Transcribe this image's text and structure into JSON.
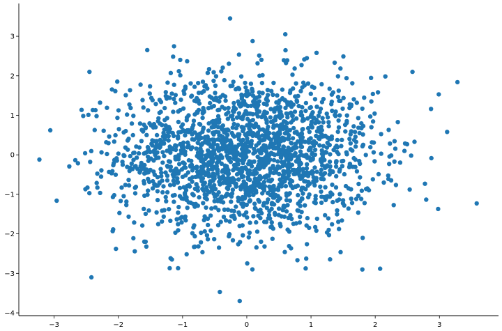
{
  "chart_data": {
    "type": "scatter",
    "title": "",
    "xlabel": "",
    "ylabel": "",
    "xlim": [
      -3.55,
      3.92
    ],
    "ylim": [
      -4.07,
      3.83
    ],
    "grid": false,
    "legend": "none",
    "spines": [
      "left",
      "bottom"
    ],
    "x_ticks": [
      -3,
      -2,
      -1,
      0,
      1,
      2,
      3
    ],
    "x_tick_labels": [
      "−3",
      "−2",
      "−1",
      "0",
      "1",
      "2",
      "3"
    ],
    "y_ticks": [
      -4,
      -3,
      -2,
      -1,
      0,
      1,
      2,
      3
    ],
    "y_tick_labels": [
      "−4",
      "−3",
      "−2",
      "−1",
      "0",
      "1",
      "2",
      "3"
    ],
    "marker_color": "#1f77b4",
    "outlier_points": [
      {
        "x": -3.23,
        "y": -0.12
      },
      {
        "x": -3.06,
        "y": 0.62
      },
      {
        "x": -2.96,
        "y": -1.16
      },
      {
        "x": -2.42,
        "y": -3.1
      },
      {
        "x": -0.42,
        "y": -3.47
      },
      {
        "x": -0.11,
        "y": -3.7
      },
      {
        "x": -0.26,
        "y": 3.45
      },
      {
        "x": 3.58,
        "y": -1.23
      },
      {
        "x": 3.28,
        "y": 1.84
      },
      {
        "x": 3.12,
        "y": 0.58
      },
      {
        "x": 2.99,
        "y": 1.53
      },
      {
        "x": 2.98,
        "y": -1.37
      },
      {
        "x": 0.6,
        "y": 3.05
      },
      {
        "x": -1.2,
        "y": -2.87
      },
      {
        "x": -1.07,
        "y": -2.87
      },
      {
        "x": 1.8,
        "y": -2.9
      },
      {
        "x": 2.58,
        "y": 2.1
      },
      {
        "x": -2.45,
        "y": 2.1
      },
      {
        "x": -1.55,
        "y": 2.65
      }
    ]
  }
}
